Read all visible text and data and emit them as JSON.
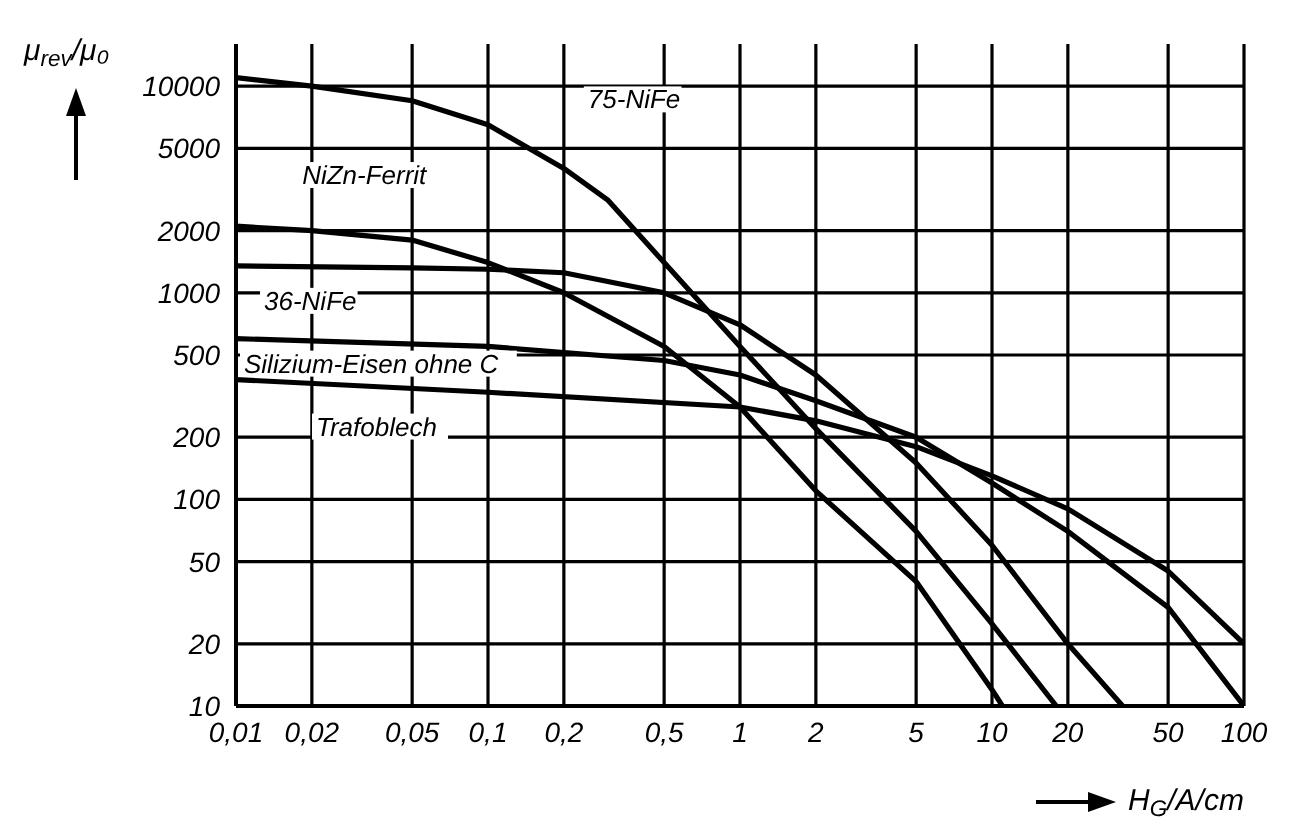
{
  "chart_data": {
    "type": "line",
    "xlabel": "H$_{G}$/A/cm",
    "ylabel": "μ$_{rev}$/μ₀",
    "log": "xy",
    "grid": true,
    "marker": "none",
    "line_style": "solid",
    "xlim": [
      0.01,
      100
    ],
    "ylim": [
      10,
      16000
    ],
    "xticks": [
      {
        "value": 0.01,
        "label": "0,01"
      },
      {
        "value": 0.02,
        "label": "0,02"
      },
      {
        "value": 0.05,
        "label": "0,05"
      },
      {
        "value": 0.1,
        "label": "0,1"
      },
      {
        "value": 0.2,
        "label": "0,2"
      },
      {
        "value": 0.5,
        "label": "0,5"
      },
      1,
      2,
      5,
      10,
      20,
      50,
      100
    ],
    "yticks": [
      10,
      20,
      50,
      100,
      200,
      500,
      1000,
      2000,
      5000,
      10000
    ],
    "series": [
      {
        "name": "75-NiFe",
        "color": "#000000",
        "x": [
          0.01,
          0.02,
          0.05,
          0.1,
          0.2,
          0.3,
          0.5,
          1,
          2,
          5,
          10,
          18
        ],
        "values": [
          11000,
          10000,
          8500,
          6500,
          4000,
          2800,
          1400,
          550,
          220,
          70,
          25,
          10
        ]
      },
      {
        "name": "NiZn-Ferrit",
        "color": "#000000",
        "x": [
          0.01,
          0.02,
          0.05,
          0.1,
          0.2,
          0.5,
          1,
          2,
          5,
          10,
          11
        ],
        "values": [
          2100,
          2000,
          1800,
          1400,
          1000,
          550,
          280,
          110,
          40,
          12,
          10
        ]
      },
      {
        "name": "36-NiFe",
        "color": "#000000",
        "x": [
          0.01,
          0.05,
          0.1,
          0.2,
          0.5,
          1,
          2,
          5,
          10,
          20,
          33
        ],
        "values": [
          1350,
          1320,
          1300,
          1250,
          1000,
          700,
          400,
          150,
          60,
          20,
          10
        ]
      },
      {
        "name": "Silizium-Eisen ohne C",
        "color": "#000000",
        "x": [
          0.01,
          0.1,
          0.5,
          1,
          2,
          5,
          10,
          20,
          50,
          100
        ],
        "values": [
          600,
          550,
          470,
          400,
          300,
          200,
          120,
          70,
          30,
          10
        ]
      },
      {
        "name": "Trafoblech",
        "color": "#000000",
        "x": [
          0.01,
          0.1,
          1,
          2,
          5,
          10,
          20,
          50,
          100
        ],
        "values": [
          380,
          330,
          280,
          240,
          180,
          130,
          90,
          45,
          20
        ]
      }
    ]
  }
}
